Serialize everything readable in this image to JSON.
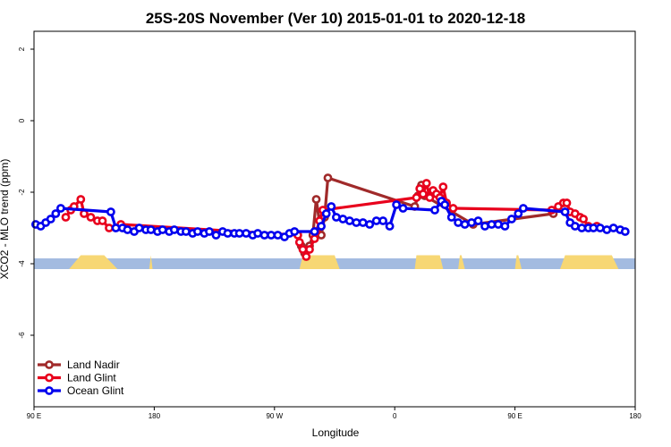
{
  "chart_data": {
    "type": "line",
    "title": "25S-20S November (Ver 10)   2015-01-01 to 2020-12-18",
    "xlabel": "Longitude",
    "ylabel": "XCO2 - MLO trend (ppm)",
    "xlim": [
      90,
      450
    ],
    "ylim": [
      -8,
      2.5
    ],
    "x_ticks": [
      {
        "value": 90,
        "label": "90 E"
      },
      {
        "value": 162,
        "label": "180"
      },
      {
        "value": 234,
        "label": "90 W"
      },
      {
        "value": 306,
        "label": "0"
      },
      {
        "value": 378,
        "label": "90 E"
      },
      {
        "value": 450,
        "label": "180"
      }
    ],
    "y_ticks": [
      {
        "value": 2,
        "label": "2"
      },
      {
        "value": 0,
        "label": "0"
      },
      {
        "value": -2,
        "label": "-2"
      },
      {
        "value": -4,
        "label": "-4"
      },
      {
        "value": -6,
        "label": "-6"
      }
    ],
    "grid": false,
    "legend_position": "bottom-left",
    "land_band": {
      "y_top": -3.85,
      "y_bottom": -4.15,
      "ocean_color": "#a3bbe0",
      "land_color": "#f7d774",
      "land_segments": [
        [
          111,
          118,
          132,
          140
        ],
        [
          159,
          160,
          160,
          161
        ],
        [
          249,
          251,
          270,
          273
        ],
        [
          318,
          319,
          333,
          335
        ],
        [
          344,
          345,
          346,
          348
        ],
        [
          405,
          408,
          436,
          440
        ],
        [
          378,
          379,
          380,
          382
        ]
      ]
    },
    "series": [
      {
        "name": "Land Nadir",
        "color": "#a02a2a",
        "points": [
          [
            250,
            -3.5
          ],
          [
            252,
            -3.7
          ],
          [
            255,
            -3.5
          ],
          [
            257,
            -3.2
          ],
          [
            259,
            -2.2
          ],
          [
            262,
            -3.2
          ],
          [
            264,
            -2.7
          ],
          [
            266,
            -1.6
          ],
          [
            318,
            -2.4
          ],
          [
            320,
            -2.1
          ],
          [
            322,
            -1.8
          ],
          [
            324,
            -2.1
          ],
          [
            353,
            -2.9
          ],
          [
            401,
            -2.6
          ]
        ]
      },
      {
        "name": "Land Glint",
        "color": "#e8001c",
        "points": [
          [
            109,
            -2.7
          ],
          [
            112,
            -2.5
          ],
          [
            114,
            -2.4
          ],
          [
            118,
            -2.2
          ],
          [
            120,
            -2.6
          ],
          [
            124,
            -2.7
          ],
          [
            128,
            -2.8
          ],
          [
            131,
            -2.8
          ],
          [
            135,
            -3.0
          ],
          [
            142,
            -2.9
          ],
          [
            248,
            -3.2
          ],
          [
            249,
            -3.4
          ],
          [
            251,
            -3.6
          ],
          [
            253,
            -3.8
          ],
          [
            255,
            -3.6
          ],
          [
            258,
            -3.3
          ],
          [
            259,
            -3.1
          ],
          [
            261,
            -2.8
          ],
          [
            263,
            -2.5
          ],
          [
            319,
            -2.15
          ],
          [
            321,
            -1.9
          ],
          [
            323,
            -2.05
          ],
          [
            325,
            -1.75
          ],
          [
            327,
            -2.15
          ],
          [
            329,
            -1.95
          ],
          [
            331,
            -2.05
          ],
          [
            333,
            -2.15
          ],
          [
            335,
            -1.85
          ],
          [
            337,
            -2.3
          ],
          [
            341,
            -2.45
          ],
          [
            400,
            -2.5
          ],
          [
            404,
            -2.4
          ],
          [
            407,
            -2.3
          ],
          [
            409,
            -2.3
          ],
          [
            411,
            -2.55
          ],
          [
            414,
            -2.6
          ],
          [
            417,
            -2.7
          ],
          [
            419,
            -2.75
          ],
          [
            422,
            -2.95
          ],
          [
            427,
            -2.95
          ]
        ]
      },
      {
        "name": "Ocean Glint",
        "color": "#0000ee",
        "points": [
          [
            91,
            -2.9
          ],
          [
            94,
            -2.95
          ],
          [
            97,
            -2.85
          ],
          [
            100,
            -2.75
          ],
          [
            103,
            -2.6
          ],
          [
            106,
            -2.45
          ],
          [
            136,
            -2.55
          ],
          [
            139,
            -3.0
          ],
          [
            143,
            -3.0
          ],
          [
            146,
            -3.05
          ],
          [
            150,
            -3.1
          ],
          [
            153,
            -3.0
          ],
          [
            157,
            -3.05
          ],
          [
            160,
            -3.05
          ],
          [
            164,
            -3.1
          ],
          [
            167,
            -3.05
          ],
          [
            171,
            -3.1
          ],
          [
            174,
            -3.05
          ],
          [
            178,
            -3.1
          ],
          [
            181,
            -3.1
          ],
          [
            185,
            -3.15
          ],
          [
            188,
            -3.1
          ],
          [
            192,
            -3.15
          ],
          [
            195,
            -3.1
          ],
          [
            199,
            -3.2
          ],
          [
            203,
            -3.1
          ],
          [
            206,
            -3.15
          ],
          [
            210,
            -3.15
          ],
          [
            213,
            -3.15
          ],
          [
            217,
            -3.15
          ],
          [
            221,
            -3.2
          ],
          [
            224,
            -3.15
          ],
          [
            228,
            -3.2
          ],
          [
            232,
            -3.2
          ],
          [
            236,
            -3.2
          ],
          [
            240,
            -3.25
          ],
          [
            243,
            -3.15
          ],
          [
            246,
            -3.1
          ],
          [
            258,
            -3.1
          ],
          [
            262,
            -2.95
          ],
          [
            265,
            -2.6
          ],
          [
            268,
            -2.4
          ],
          [
            271,
            -2.7
          ],
          [
            275,
            -2.75
          ],
          [
            279,
            -2.8
          ],
          [
            283,
            -2.85
          ],
          [
            287,
            -2.85
          ],
          [
            291,
            -2.9
          ],
          [
            295,
            -2.8
          ],
          [
            299,
            -2.8
          ],
          [
            303,
            -2.95
          ],
          [
            307,
            -2.35
          ],
          [
            311,
            -2.45
          ],
          [
            330,
            -2.5
          ],
          [
            334,
            -2.25
          ],
          [
            336,
            -2.35
          ],
          [
            340,
            -2.7
          ],
          [
            344,
            -2.85
          ],
          [
            348,
            -2.9
          ],
          [
            352,
            -2.85
          ],
          [
            356,
            -2.8
          ],
          [
            360,
            -2.95
          ],
          [
            364,
            -2.9
          ],
          [
            368,
            -2.9
          ],
          [
            372,
            -2.95
          ],
          [
            376,
            -2.75
          ],
          [
            380,
            -2.6
          ],
          [
            383,
            -2.45
          ],
          [
            408,
            -2.55
          ],
          [
            411,
            -2.85
          ],
          [
            414,
            -2.95
          ],
          [
            418,
            -3.0
          ],
          [
            422,
            -3.0
          ],
          [
            425,
            -3.0
          ],
          [
            429,
            -3.0
          ],
          [
            433,
            -3.05
          ],
          [
            437,
            -3.0
          ],
          [
            441,
            -3.05
          ],
          [
            444,
            -3.1
          ]
        ]
      }
    ]
  }
}
